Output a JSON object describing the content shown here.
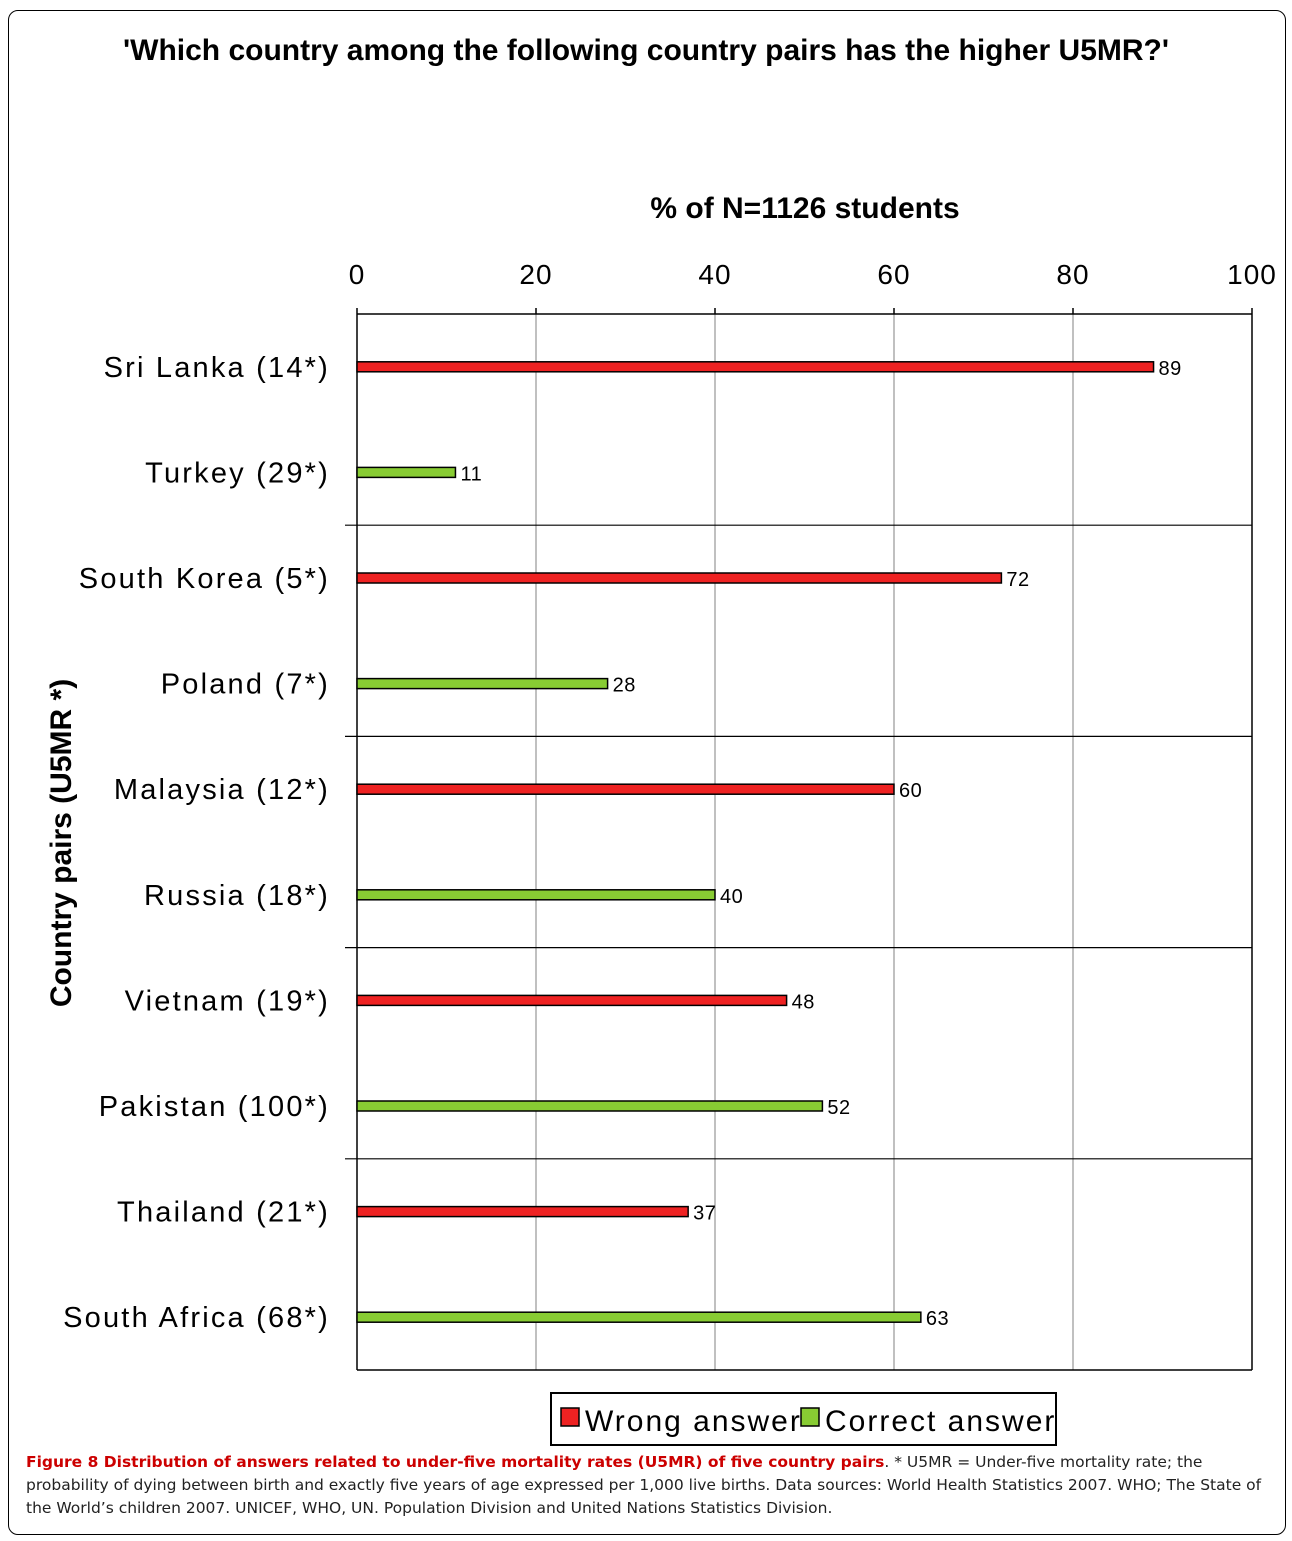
{
  "chart_data": {
    "type": "bar",
    "title": "'Which country among the following country pairs has the higher U5MR?'",
    "xlabel": "% of N=1126 students",
    "ylabel": "Country pairs (U5MR *)",
    "xlim": [
      0,
      100
    ],
    "xticks": [
      "0",
      "20",
      "40",
      "60",
      "80",
      "100"
    ],
    "grid": true,
    "legend_position": "bottom",
    "categories": [
      "Sri Lanka (14*)",
      "Turkey (29*)",
      "South Korea (5*)",
      "Poland (7*)",
      "Malaysia (12*)",
      "Russia (18*)",
      "Vietnam (19*)",
      "Pakistan (100*)",
      "Thailand  (21*)",
      "South Africa (68*)"
    ],
    "values": [
      89,
      11,
      72,
      28,
      60,
      40,
      48,
      52,
      37,
      63
    ],
    "value_labels": [
      "89",
      "11",
      "72",
      "28",
      "60",
      "40",
      "48",
      "52",
      "37",
      "63"
    ],
    "bar_series": [
      "Wrong answer",
      "Correct answer",
      "Wrong answer",
      "Correct answer",
      "Wrong answer",
      "Correct answer",
      "Wrong answer",
      "Correct answer",
      "Wrong answer",
      "Correct answer"
    ],
    "series": [
      {
        "name": "Wrong answer",
        "color": "#ee2222"
      },
      {
        "name": "Correct answer",
        "color": "#88cc33"
      }
    ]
  },
  "caption": {
    "bold": "Figure 8 Distribution of answers related to under-five mortality rates (U5MR) of five country pairs",
    "text": ". * U5MR = Under-five mortality rate; the probability of dying between birth and exactly five years of age expressed per 1,000 live births. Data sources: World Health Statistics 2007. WHO; The State of the World’s children 2007. UNICEF, WHO, UN. Population Division and United Nations Statistics Division."
  }
}
